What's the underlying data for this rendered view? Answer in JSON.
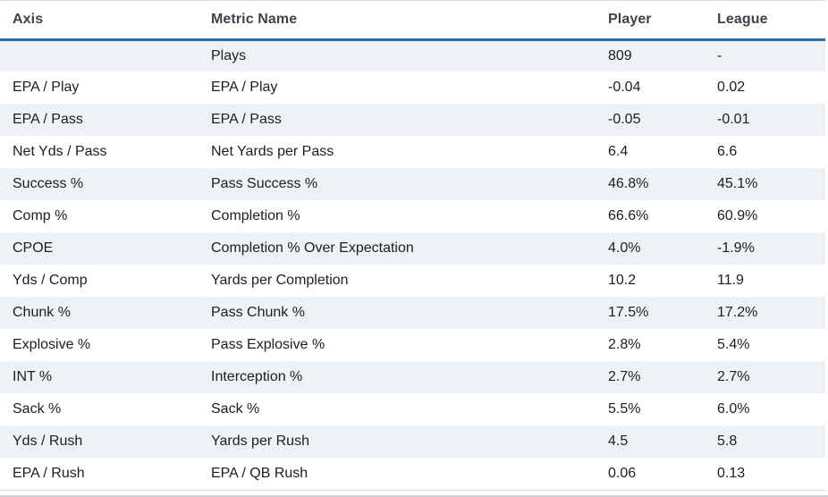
{
  "colors": {
    "header_underline": "#2b6cb0",
    "row_stripe": "#edf2f7",
    "table_border": "#d9dee4",
    "header_text": "#3d4349",
    "body_text": "#1b1e22"
  },
  "table": {
    "columns": {
      "axis": "Axis",
      "metric": "Metric Name",
      "player": "Player",
      "league": "League"
    },
    "rows": [
      {
        "axis": "",
        "metric": "Plays",
        "player": "809",
        "league": "-"
      },
      {
        "axis": "EPA / Play",
        "metric": "EPA / Play",
        "player": "-0.04",
        "league": "0.02"
      },
      {
        "axis": "EPA / Pass",
        "metric": "EPA / Pass",
        "player": "-0.05",
        "league": "-0.01"
      },
      {
        "axis": "Net Yds / Pass",
        "metric": "Net Yards per Pass",
        "player": "6.4",
        "league": "6.6"
      },
      {
        "axis": "Success %",
        "metric": "Pass Success %",
        "player": "46.8%",
        "league": "45.1%"
      },
      {
        "axis": "Comp %",
        "metric": "Completion %",
        "player": "66.6%",
        "league": "60.9%"
      },
      {
        "axis": "CPOE",
        "metric": "Completion % Over Expectation",
        "player": "4.0%",
        "league": "-1.9%"
      },
      {
        "axis": "Yds / Comp",
        "metric": "Yards per Completion",
        "player": "10.2",
        "league": "11.9"
      },
      {
        "axis": "Chunk %",
        "metric": "Pass Chunk %",
        "player": "17.5%",
        "league": "17.2%"
      },
      {
        "axis": "Explosive %",
        "metric": "Pass Explosive %",
        "player": "2.8%",
        "league": "5.4%"
      },
      {
        "axis": "INT %",
        "metric": "Interception %",
        "player": "2.7%",
        "league": "2.7%"
      },
      {
        "axis": "Sack %",
        "metric": "Sack %",
        "player": "5.5%",
        "league": "6.0%"
      },
      {
        "axis": "Yds / Rush",
        "metric": "Yards per Rush",
        "player": "4.5",
        "league": "5.8"
      },
      {
        "axis": "EPA / Rush",
        "metric": "EPA / QB Rush",
        "player": "0.06",
        "league": "0.13"
      }
    ]
  }
}
